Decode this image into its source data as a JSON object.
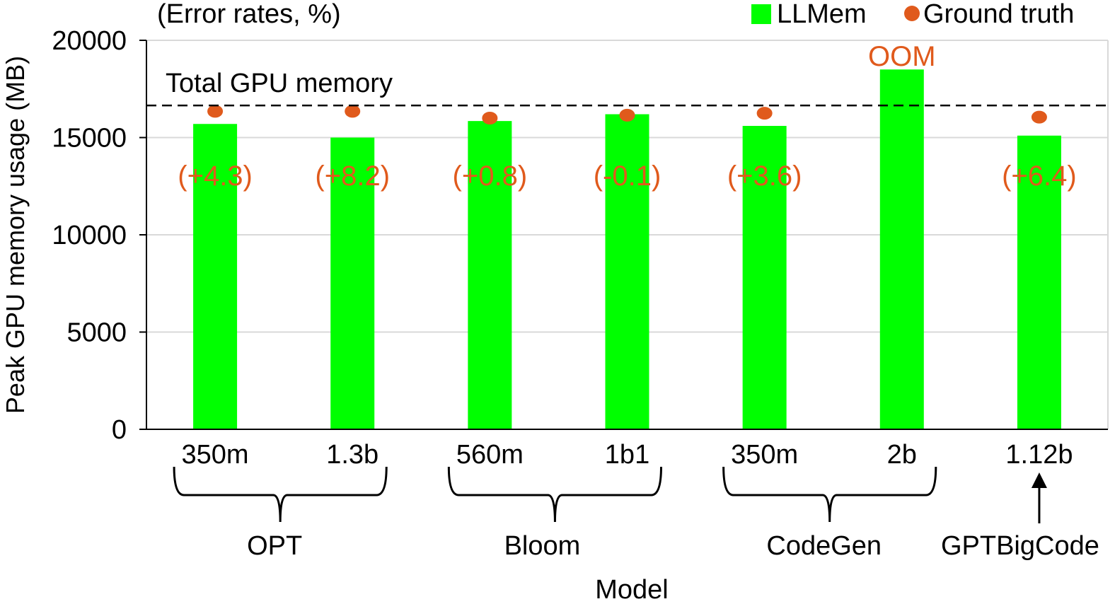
{
  "chart_data": {
    "type": "bar",
    "subtitle": "(Error rates, %)",
    "xlabel": "Model",
    "ylabel": "Peak GPU memory usage (MB)",
    "ylim": [
      0,
      20000
    ],
    "yticks": [
      "0",
      "5000",
      "10000",
      "15000",
      "20000"
    ],
    "grid": true,
    "legend_position": "top-right",
    "categories": [
      "350m",
      "1.3b",
      "560m",
      "1b1",
      "350m",
      "2b",
      "1.12b"
    ],
    "groups": [
      {
        "name": "OPT",
        "members": [
          0,
          1
        ]
      },
      {
        "name": "Bloom",
        "members": [
          2,
          3
        ]
      },
      {
        "name": "CodeGen",
        "members": [
          4,
          5
        ]
      },
      {
        "name": "GPTBigCode",
        "members": [
          6
        ]
      }
    ],
    "series": [
      {
        "name": "LLMem",
        "kind": "bar",
        "color": "#00ff00",
        "values": [
          15700,
          15000,
          15850,
          16200,
          15600,
          18500,
          15100
        ]
      },
      {
        "name": "Ground truth",
        "kind": "point",
        "color": "#e05a1c",
        "values": [
          16350,
          16350,
          16000,
          16150,
          16250,
          null,
          16050
        ]
      }
    ],
    "error_labels": [
      "(+4.3)",
      "(+8.2)",
      "(+0.8)",
      "(-0.1)",
      "(+3.6)",
      "",
      "(+6.4)"
    ],
    "oom_label": "OOM",
    "reference_line": {
      "label": "Total GPU memory",
      "value": 16650
    },
    "colors": {
      "accent": "#e05a1c",
      "bar": "#00ff00",
      "grid": "#d9d9d9",
      "axis": "#000000"
    }
  }
}
